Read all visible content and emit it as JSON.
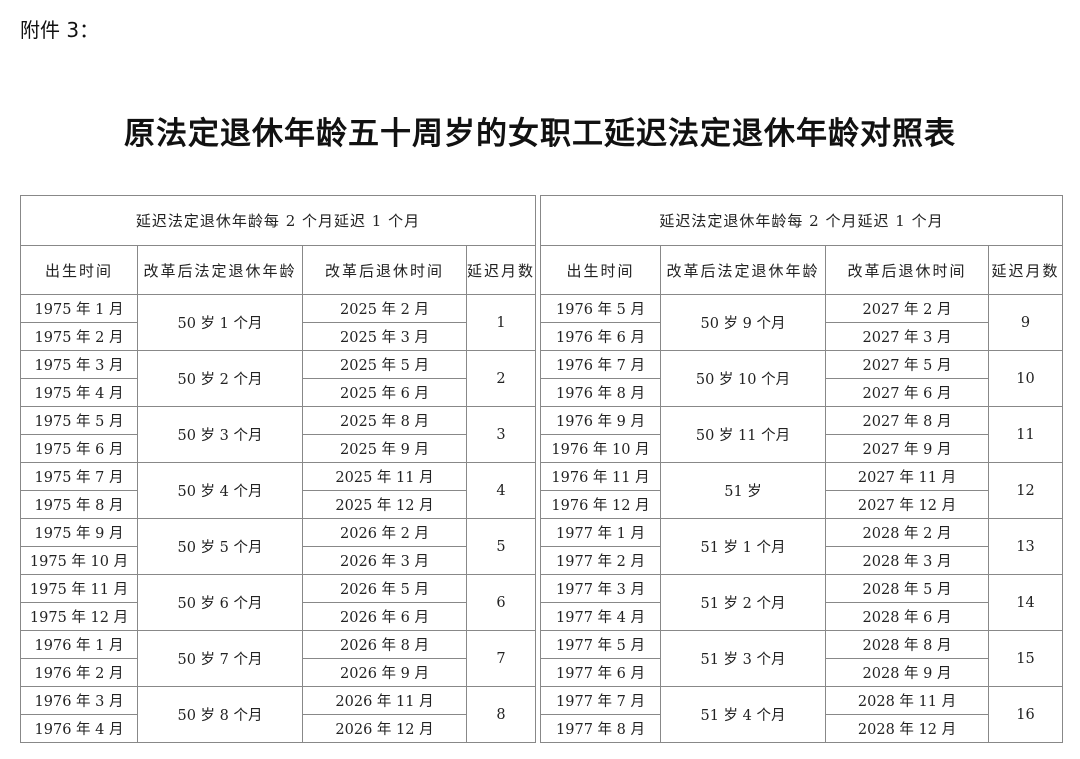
{
  "attachment_label": "附件 3：",
  "title": "原法定退休年龄五十周岁的女职工延迟法定退休年龄对照表",
  "tables": [
    {
      "caption": "延迟法定退休年龄每 2 个月延迟 1 个月",
      "headers": [
        "出生时间",
        "改革后法定退休年龄",
        "改革后退休时间",
        "延迟月数"
      ],
      "groups": [
        {
          "births": [
            "1975 年 1 月",
            "1975 年 2 月"
          ],
          "age": "50 岁 1 个月",
          "retire": [
            "2025 年 2 月",
            "2025 年 3 月"
          ],
          "months": "1"
        },
        {
          "births": [
            "1975 年 3 月",
            "1975 年 4 月"
          ],
          "age": "50 岁 2 个月",
          "retire": [
            "2025 年 5 月",
            "2025 年 6 月"
          ],
          "months": "2"
        },
        {
          "births": [
            "1975 年 5 月",
            "1975 年 6 月"
          ],
          "age": "50 岁 3 个月",
          "retire": [
            "2025 年 8 月",
            "2025 年 9 月"
          ],
          "months": "3"
        },
        {
          "births": [
            "1975 年 7 月",
            "1975 年 8 月"
          ],
          "age": "50 岁 4 个月",
          "retire": [
            "2025 年 11 月",
            "2025 年 12 月"
          ],
          "months": "4"
        },
        {
          "births": [
            "1975 年 9 月",
            "1975 年 10 月"
          ],
          "age": "50 岁 5 个月",
          "retire": [
            "2026 年 2 月",
            "2026 年 3 月"
          ],
          "months": "5"
        },
        {
          "births": [
            "1975 年 11 月",
            "1975 年 12 月"
          ],
          "age": "50 岁 6 个月",
          "retire": [
            "2026 年 5 月",
            "2026 年 6 月"
          ],
          "months": "6"
        },
        {
          "births": [
            "1976 年 1 月",
            "1976 年 2 月"
          ],
          "age": "50 岁 7 个月",
          "retire": [
            "2026 年 8 月",
            "2026 年 9 月"
          ],
          "months": "7"
        },
        {
          "births": [
            "1976 年 3 月",
            "1976 年 4 月"
          ],
          "age": "50 岁 8 个月",
          "retire": [
            "2026 年 11 月",
            "2026 年 12 月"
          ],
          "months": "8"
        }
      ]
    },
    {
      "caption": "延迟法定退休年龄每 2 个月延迟 1 个月",
      "headers": [
        "出生时间",
        "改革后法定退休年龄",
        "改革后退休时间",
        "延迟月数"
      ],
      "groups": [
        {
          "births": [
            "1976 年 5 月",
            "1976 年 6 月"
          ],
          "age": "50 岁 9 个月",
          "retire": [
            "2027 年 2 月",
            "2027 年 3 月"
          ],
          "months": "9"
        },
        {
          "births": [
            "1976 年 7 月",
            "1976 年 8 月"
          ],
          "age": "50 岁 10 个月",
          "retire": [
            "2027 年 5 月",
            "2027 年 6 月"
          ],
          "months": "10"
        },
        {
          "births": [
            "1976 年 9 月",
            "1976 年 10 月"
          ],
          "age": "50 岁 11 个月",
          "retire": [
            "2027 年 8 月",
            "2027 年 9 月"
          ],
          "months": "11"
        },
        {
          "births": [
            "1976 年 11 月",
            "1976 年 12 月"
          ],
          "age": "51 岁",
          "retire": [
            "2027 年 11 月",
            "2027 年 12 月"
          ],
          "months": "12"
        },
        {
          "births": [
            "1977 年 1 月",
            "1977 年 2 月"
          ],
          "age": "51 岁 1 个月",
          "retire": [
            "2028 年 2 月",
            "2028 年 3 月"
          ],
          "months": "13"
        },
        {
          "births": [
            "1977 年 3 月",
            "1977 年 4 月"
          ],
          "age": "51 岁 2 个月",
          "retire": [
            "2028 年 5 月",
            "2028 年 6 月"
          ],
          "months": "14"
        },
        {
          "births": [
            "1977 年 5 月",
            "1977 年 6 月"
          ],
          "age": "51 岁 3 个月",
          "retire": [
            "2028 年 8 月",
            "2028 年 9 月"
          ],
          "months": "15"
        },
        {
          "births": [
            "1977 年 7 月",
            "1977 年 8 月"
          ],
          "age": "51 岁 4 个月",
          "retire": [
            "2028 年 11 月",
            "2028 年 12 月"
          ],
          "months": "16"
        }
      ]
    }
  ]
}
